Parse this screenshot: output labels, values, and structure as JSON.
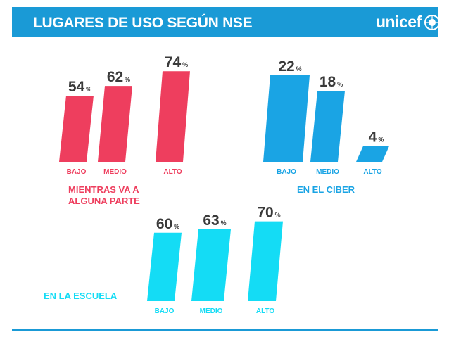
{
  "header": {
    "title": "LUGARES DE USO SEGÚN NSE",
    "logo_text": "unicef"
  },
  "colors": {
    "header_blue": "#1a9ad6",
    "red": "#ee3e5e",
    "blue": "#1aa4e4",
    "cyan": "#14dcf5",
    "label_dark": "#3a3a3a"
  },
  "chart_data": [
    {
      "type": "bar",
      "title": "MIENTRAS VA A ALGUNA PARTE",
      "title_lines": [
        "MIENTRAS VA A",
        "ALGUNA PARTE"
      ],
      "categories": [
        "BAJO",
        "MEDIO",
        "ALTO"
      ],
      "values": [
        54,
        62,
        74
      ],
      "unit": "%",
      "color": "#ee3e5e"
    },
    {
      "type": "bar",
      "title": "EN EL CIBER",
      "title_lines": [
        "EN EL CIBER"
      ],
      "categories": [
        "BAJO",
        "MEDIO",
        "ALTO"
      ],
      "values": [
        22,
        18,
        4
      ],
      "unit": "%",
      "color": "#1aa4e4"
    },
    {
      "type": "bar",
      "title": "EN LA ESCUELA",
      "title_lines": [
        "EN LA ESCUELA"
      ],
      "categories": [
        "BAJO",
        "MEDIO",
        "ALTO"
      ],
      "values": [
        60,
        63,
        70
      ],
      "unit": "%",
      "color": "#14dcf5"
    }
  ]
}
